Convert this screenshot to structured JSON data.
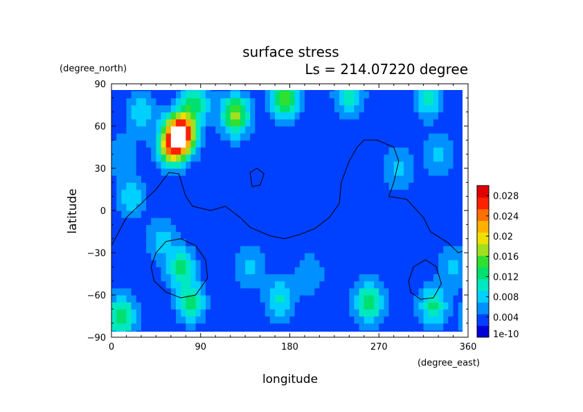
{
  "chart_data": {
    "type": "heatmap",
    "title": "surface stress",
    "subtitle": "Ls = 214.07220 degree",
    "xlabel": "longitude",
    "ylabel": "latitude",
    "x_units": "(degree_east)",
    "y_units": "(degree_north)",
    "xlim": [
      0,
      360
    ],
    "ylim": [
      -90,
      90
    ],
    "x_ticks": [
      0,
      90,
      180,
      270,
      360
    ],
    "y_ticks": [
      -90,
      -60,
      -30,
      0,
      30,
      60,
      90
    ],
    "x_tick_labels": [
      "0",
      "90",
      "180",
      "270",
      "360"
    ],
    "y_tick_labels": [
      "−90",
      "−60",
      "−30",
      "0",
      "30",
      "60",
      "90"
    ],
    "colorbar": {
      "min_label": "1e-10",
      "ticks": [
        0.004,
        0.008,
        0.012,
        0.016,
        0.02,
        0.024,
        0.028
      ],
      "tick_labels": [
        "0.004",
        "0.008",
        "0.012",
        "0.016",
        "0.02",
        "0.024",
        "0.028"
      ],
      "range": [
        0,
        0.03
      ],
      "colors": [
        "#0000d8",
        "#0040ff",
        "#0090ff",
        "#00d0ff",
        "#00e8c0",
        "#00e070",
        "#30e030",
        "#a0e020",
        "#f0e000",
        "#ffb000",
        "#ff7000",
        "#ff2000",
        "#e00000"
      ]
    },
    "field": {
      "background_value": 0.003,
      "features": [
        {
          "lon": 70,
          "lat": 55,
          "value": 0.032
        },
        {
          "lon": 60,
          "lat": 45,
          "value": 0.018
        },
        {
          "lon": 125,
          "lat": 68,
          "value": 0.017
        },
        {
          "lon": 175,
          "lat": 80,
          "value": 0.016
        },
        {
          "lon": 85,
          "lat": 77,
          "value": 0.012
        },
        {
          "lon": 240,
          "lat": 82,
          "value": 0.011
        },
        {
          "lon": 320,
          "lat": 80,
          "value": 0.01
        },
        {
          "lon": 30,
          "lat": 70,
          "value": 0.009
        },
        {
          "lon": 70,
          "lat": -40,
          "value": 0.012
        },
        {
          "lon": 50,
          "lat": -20,
          "value": 0.008
        },
        {
          "lon": 80,
          "lat": -65,
          "value": 0.012
        },
        {
          "lon": 170,
          "lat": -63,
          "value": 0.01
        },
        {
          "lon": 260,
          "lat": -65,
          "value": 0.014
        },
        {
          "lon": 10,
          "lat": -75,
          "value": 0.014
        },
        {
          "lon": 325,
          "lat": -68,
          "value": 0.012
        },
        {
          "lon": 140,
          "lat": -40,
          "value": 0.008
        },
        {
          "lon": 200,
          "lat": -45,
          "value": 0.007
        },
        {
          "lon": 20,
          "lat": 10,
          "value": 0.009
        },
        {
          "lon": 290,
          "lat": 30,
          "value": 0.008
        },
        {
          "lon": 330,
          "lat": 40,
          "value": 0.008
        },
        {
          "lon": 10,
          "lat": 40,
          "value": 0.007
        },
        {
          "lon": 345,
          "lat": -40,
          "value": 0.008
        }
      ]
    },
    "contours": [
      {
        "name": "continent-outline",
        "points": [
          [
            0,
            -25
          ],
          [
            15,
            -5
          ],
          [
            30,
            5
          ],
          [
            45,
            15
          ],
          [
            58,
            27
          ],
          [
            68,
            26
          ],
          [
            75,
            10
          ],
          [
            82,
            3
          ],
          [
            100,
            0
          ],
          [
            115,
            3
          ],
          [
            130,
            -5
          ],
          [
            140,
            -12
          ],
          [
            160,
            -18
          ],
          [
            175,
            -20
          ],
          [
            190,
            -17
          ],
          [
            205,
            -13
          ],
          [
            220,
            -5
          ],
          [
            230,
            5
          ],
          [
            232,
            20
          ],
          [
            240,
            35
          ],
          [
            248,
            45
          ],
          [
            255,
            50
          ],
          [
            268,
            50
          ],
          [
            285,
            45
          ],
          [
            290,
            35
          ],
          [
            285,
            20
          ],
          [
            280,
            10
          ],
          [
            298,
            8
          ],
          [
            315,
            -5
          ],
          [
            322,
            -15
          ],
          [
            340,
            -23
          ],
          [
            350,
            -30
          ],
          [
            360,
            -28
          ]
        ]
      },
      {
        "name": "small-loop-north",
        "points": [
          [
            142,
            17
          ],
          [
            150,
            18
          ],
          [
            154,
            26
          ],
          [
            147,
            30
          ],
          [
            140,
            27
          ],
          [
            142,
            17
          ]
        ]
      },
      {
        "name": "southern-basin-loop",
        "points": [
          [
            40,
            -40
          ],
          [
            45,
            -30
          ],
          [
            55,
            -22
          ],
          [
            70,
            -20
          ],
          [
            85,
            -25
          ],
          [
            95,
            -35
          ],
          [
            97,
            -48
          ],
          [
            85,
            -60
          ],
          [
            70,
            -62
          ],
          [
            55,
            -58
          ],
          [
            43,
            -50
          ],
          [
            40,
            -40
          ]
        ]
      },
      {
        "name": "southeast-loop",
        "points": [
          [
            300,
            -50
          ],
          [
            305,
            -40
          ],
          [
            317,
            -35
          ],
          [
            328,
            -40
          ],
          [
            333,
            -52
          ],
          [
            325,
            -62
          ],
          [
            312,
            -63
          ],
          [
            302,
            -58
          ],
          [
            300,
            -50
          ]
        ]
      }
    ]
  }
}
